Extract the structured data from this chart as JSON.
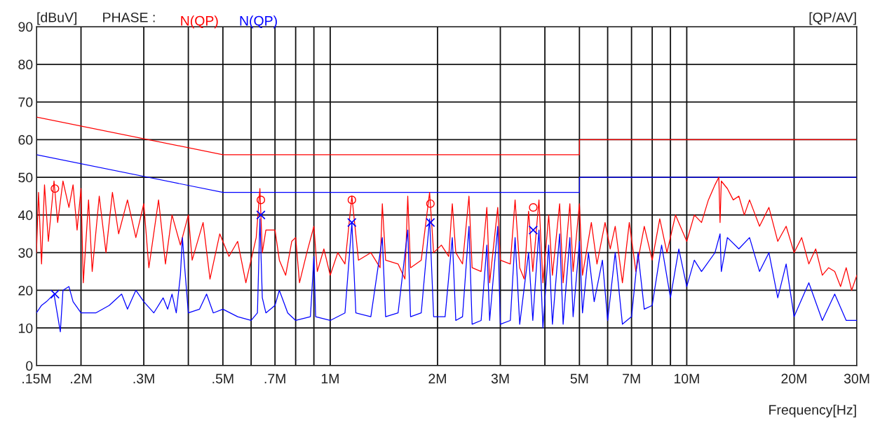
{
  "chart_data": {
    "type": "line",
    "ylabel": "[dBuV]",
    "xlabel": "Frequency[Hz]",
    "annotations": [
      "PHASE :",
      "[QP/AV]"
    ],
    "log": "x",
    "grid": true,
    "legend": "top left",
    "xlim": [
      0.15,
      30
    ],
    "ylim": [
      0,
      90
    ],
    "xticks": [
      {
        "value": 0.15,
        "label": ".15M"
      },
      {
        "value": 0.2,
        "label": ".2M"
      },
      {
        "value": 0.3,
        "label": ".3M"
      },
      {
        "value": 0.4,
        "label": null
      },
      {
        "value": 0.5,
        "label": ".5M"
      },
      {
        "value": 0.6,
        "label": null
      },
      {
        "value": 0.7,
        "label": ".7M"
      },
      {
        "value": 0.8,
        "label": null
      },
      {
        "value": 0.9,
        "label": null
      },
      {
        "value": 1,
        "label": "1M"
      },
      {
        "value": 2,
        "label": "2M"
      },
      {
        "value": 3,
        "label": "3M"
      },
      {
        "value": 4,
        "label": null
      },
      {
        "value": 5,
        "label": "5M"
      },
      {
        "value": 6,
        "label": null
      },
      {
        "value": 7,
        "label": "7M"
      },
      {
        "value": 8,
        "label": null
      },
      {
        "value": 9,
        "label": null
      },
      {
        "value": 10,
        "label": "10M"
      },
      {
        "value": 20,
        "label": "20M"
      },
      {
        "value": 30,
        "label": "30M"
      }
    ],
    "yticks": [
      0,
      10,
      20,
      30,
      40,
      50,
      60,
      70,
      80,
      90
    ],
    "series": [
      {
        "name": "N(QP)",
        "color": "#ff0000",
        "marker": "none",
        "line_style": "solid",
        "x": [
          0.15,
          0.152,
          0.155,
          0.158,
          0.162,
          0.168,
          0.172,
          0.178,
          0.185,
          0.19,
          0.195,
          0.2,
          0.203,
          0.21,
          0.215,
          0.225,
          0.235,
          0.245,
          0.255,
          0.27,
          0.285,
          0.3,
          0.31,
          0.33,
          0.345,
          0.36,
          0.38,
          0.4,
          0.41,
          0.44,
          0.46,
          0.49,
          0.52,
          0.55,
          0.58,
          0.62,
          0.635,
          0.645,
          0.66,
          0.7,
          0.72,
          0.75,
          0.78,
          0.8,
          0.82,
          0.86,
          0.9,
          0.92,
          0.96,
          1.0,
          1.05,
          1.1,
          1.15,
          1.2,
          1.3,
          1.38,
          1.4,
          1.43,
          1.55,
          1.62,
          1.65,
          1.68,
          1.8,
          1.9,
          1.95,
          2.05,
          2.15,
          2.2,
          2.25,
          2.35,
          2.45,
          2.5,
          2.65,
          2.75,
          2.8,
          2.95,
          3.0,
          3.2,
          3.3,
          3.4,
          3.5,
          3.6,
          3.7,
          3.85,
          3.95,
          4.1,
          4.2,
          4.4,
          4.5,
          4.7,
          4.8,
          5.0,
          5.1,
          5.4,
          5.6,
          5.9,
          6.1,
          6.3,
          6.6,
          6.9,
          7.2,
          7.6,
          8.0,
          8.4,
          8.8,
          9.3,
          10.0,
          10.5,
          11.0,
          11.5,
          12.0,
          12.3,
          12.4,
          12.5,
          13.0,
          13.5,
          14,
          14.5,
          15,
          16,
          17,
          18,
          19,
          20,
          21,
          22,
          23,
          24,
          25,
          26,
          27,
          28,
          29,
          30
        ],
        "values": [
          30,
          46,
          27,
          48,
          33,
          49,
          38,
          49,
          42,
          48,
          36,
          47,
          22,
          44,
          25,
          45,
          30,
          46,
          35,
          44,
          34,
          43,
          26,
          44,
          27,
          40,
          32,
          40,
          28,
          38,
          23,
          35,
          29,
          33,
          22,
          34,
          47,
          30,
          36,
          36,
          28,
          24,
          33,
          34,
          22,
          30,
          37,
          25,
          31,
          24,
          30,
          27,
          45,
          28,
          30,
          26,
          43,
          28,
          27,
          23,
          45,
          26,
          28,
          46,
          30,
          32,
          29,
          43,
          30,
          27,
          45,
          26,
          25,
          42,
          22,
          42,
          28,
          27,
          44,
          26,
          23,
          41,
          25,
          44,
          22,
          40,
          24,
          43,
          22,
          43,
          25,
          43,
          24,
          38,
          27,
          38,
          31,
          37,
          22,
          38,
          25,
          37,
          28,
          39,
          30,
          40,
          33,
          40,
          38,
          44,
          48,
          50,
          38,
          49,
          47,
          44,
          45,
          40,
          44,
          37,
          42,
          33,
          37,
          30,
          34,
          27,
          31,
          24,
          26,
          25,
          21,
          26,
          20,
          24
        ]
      },
      {
        "name": "N(QP)",
        "color": "#0000ff",
        "marker": "none",
        "line_style": "solid",
        "x": [
          0.15,
          0.155,
          0.16,
          0.168,
          0.175,
          0.178,
          0.185,
          0.19,
          0.2,
          0.22,
          0.24,
          0.26,
          0.27,
          0.285,
          0.3,
          0.32,
          0.34,
          0.35,
          0.36,
          0.37,
          0.38,
          0.385,
          0.39,
          0.4,
          0.43,
          0.45,
          0.47,
          0.5,
          0.55,
          0.6,
          0.625,
          0.635,
          0.645,
          0.66,
          0.7,
          0.72,
          0.76,
          0.8,
          0.88,
          0.9,
          0.91,
          1.0,
          1.1,
          1.15,
          1.18,
          1.3,
          1.4,
          1.43,
          1.55,
          1.65,
          1.68,
          1.8,
          1.9,
          1.95,
          2.1,
          2.2,
          2.25,
          2.35,
          2.45,
          2.5,
          2.65,
          2.75,
          2.8,
          2.95,
          3.0,
          3.2,
          3.3,
          3.4,
          3.6,
          3.7,
          3.85,
          3.95,
          4.1,
          4.2,
          4.4,
          4.5,
          4.7,
          4.8,
          5.0,
          5.1,
          5.3,
          5.5,
          5.8,
          6.0,
          6.3,
          6.6,
          7.0,
          7.3,
          7.6,
          8.0,
          8.5,
          9.0,
          9.5,
          10.0,
          10.5,
          11.0,
          12.0,
          12.4,
          12.5,
          13.0,
          14.0,
          15.0,
          16.0,
          17.0,
          18.0,
          19.0,
          20.0,
          22.0,
          24.0,
          26.0,
          28.0,
          30.0
        ],
        "values": [
          14,
          16,
          17,
          19,
          9,
          20,
          21,
          17,
          14,
          14,
          16,
          19,
          15,
          20,
          17,
          14,
          18,
          15,
          19,
          14,
          24,
          34,
          27,
          14,
          15,
          19,
          14,
          15,
          13,
          12,
          14,
          39,
          18,
          14,
          16,
          20,
          14,
          12,
          13,
          29,
          13,
          12,
          14,
          38,
          14,
          13,
          34,
          13,
          14,
          36,
          13,
          14,
          39,
          13,
          13,
          34,
          12,
          13,
          37,
          11,
          12,
          32,
          12,
          37,
          11,
          12,
          34,
          11,
          30,
          12,
          36,
          10,
          32,
          11,
          35,
          11,
          34,
          13,
          33,
          14,
          30,
          17,
          28,
          12,
          30,
          11,
          13,
          30,
          15,
          16,
          32,
          18,
          31,
          21,
          28,
          25,
          30,
          35,
          25,
          34,
          31,
          34,
          25,
          30,
          18,
          27,
          13,
          22,
          12,
          19,
          12,
          12
        ]
      },
      {
        "color": "#ff0000",
        "marker": "none",
        "line_style": "solid",
        "x": [
          0.15,
          0.5,
          5,
          5,
          30
        ],
        "values": [
          66,
          56,
          56,
          60,
          60
        ]
      },
      {
        "color": "#0000ff",
        "marker": "none",
        "line_style": "solid",
        "x": [
          0.15,
          0.5,
          5,
          5,
          30
        ],
        "values": [
          56,
          46,
          46,
          50,
          50
        ]
      },
      {
        "color": "#ff0000",
        "type": "scatter",
        "marker": "circle",
        "x": [
          0.169,
          0.639,
          1.15,
          1.91,
          3.71
        ],
        "values": [
          47,
          44,
          44,
          43,
          42
        ]
      },
      {
        "color": "#0000ff",
        "type": "scatter",
        "marker": "cross",
        "x": [
          0.169,
          0.639,
          1.15,
          1.91,
          3.71
        ],
        "values": [
          19,
          40,
          38,
          38,
          36
        ]
      }
    ]
  }
}
